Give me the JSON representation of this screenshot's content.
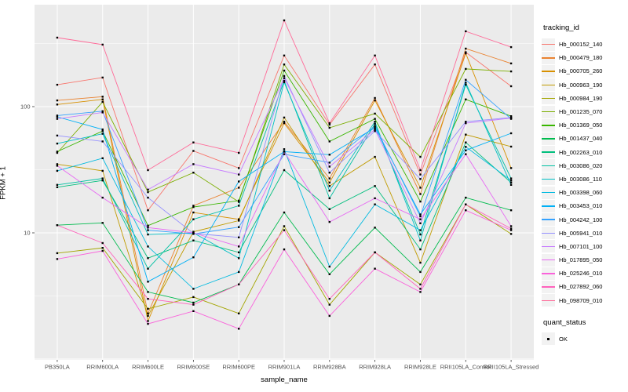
{
  "figure": {
    "background": "#ffffff",
    "panel_background": "#EBEBEB",
    "gridline_color": "#FFFFFF",
    "axis_text_color": "#4D4D4D",
    "tick_mark_color": "#333333"
  },
  "axes": {
    "y_title": "FPKM + 1",
    "x_title": "sample_name"
  },
  "legend": {
    "title": "tracking_id"
  },
  "legend2": {
    "title": "quant_status",
    "items": [
      {
        "label": "OK",
        "symbol": "filled-square-icon"
      }
    ]
  },
  "chart_data": {
    "type": "line",
    "title": "",
    "xlabel": "sample_name",
    "ylabel": "FPKM + 1",
    "y_scale": "log10",
    "y_ticks": [
      100,
      10
    ],
    "y_minor_breaks": [
      316.2,
      31.62,
      3.162
    ],
    "ylim": [
      1,
      650
    ],
    "grid": true,
    "legend_position": "right",
    "point_shape": "filled-square",
    "point_color": "#000000",
    "x_categories": [
      "PB350LA",
      "RRIM600LA",
      "RRIM600LE",
      "RRIM600SE",
      "RRIM600PE",
      "RRIM901LA",
      "RRIM928BA",
      "RRIM928LA",
      "RRIM928LE",
      "RRII105LA_Control",
      "RRII105LA_Stressed"
    ],
    "series": [
      {
        "name": "Hb_000152_140",
        "color": "#F8766D",
        "values": [
          149,
          170,
          15.1,
          44.6,
          32.6,
          254,
          72,
          216,
          29,
          270,
          145
        ]
      },
      {
        "name": "Hb_000479_180",
        "color": "#EA8331",
        "values": [
          112,
          120,
          2.3,
          16.4,
          22.8,
          76,
          27,
          117,
          20.3,
          288,
          220
        ]
      },
      {
        "name": "Hb_000705_260",
        "color": "#D89000",
        "values": [
          104,
          114,
          2.0,
          14.5,
          12.8,
          74,
          25,
          112,
          22.8,
          264,
          32.6
        ]
      },
      {
        "name": "Hb_000963_190",
        "color": "#C09B00",
        "values": [
          35,
          31,
          2.2,
          10.2,
          12.5,
          82,
          23.5,
          40,
          5.8,
          60,
          48.2
        ]
      },
      {
        "name": "Hb_000984_190",
        "color": "#A3A500",
        "values": [
          6.9,
          7.6,
          2.5,
          3.1,
          2.3,
          11.3,
          2.7,
          7.0,
          3.9,
          16.8,
          9.8
        ]
      },
      {
        "name": "Hb_001235_070",
        "color": "#7CAE00",
        "values": [
          43,
          109,
          21,
          30,
          17.6,
          216,
          68,
          88,
          40,
          199,
          190
        ]
      },
      {
        "name": "Hb_001369_050",
        "color": "#39B600",
        "values": [
          44,
          64,
          11.4,
          16.0,
          18.0,
          193,
          53,
          80,
          17.7,
          114,
          84
        ]
      },
      {
        "name": "Hb_001437_040",
        "color": "#00BB4E",
        "values": [
          11.5,
          12,
          3.4,
          2.8,
          3.9,
          14.5,
          4.7,
          11.0,
          4.9,
          19,
          15.1
        ]
      },
      {
        "name": "Hb_002263_010",
        "color": "#00BF7D",
        "values": [
          23,
          26,
          6.3,
          8.7,
          7.0,
          31.4,
          15.4,
          23.5,
          7.4,
          52,
          25
        ]
      },
      {
        "name": "Hb_003086_020",
        "color": "#00C1A3",
        "values": [
          24,
          27,
          5.2,
          12.8,
          16.4,
          160,
          18.8,
          73,
          9.7,
          149,
          27
        ]
      },
      {
        "name": "Hb_003086_110",
        "color": "#00BFC4",
        "values": [
          51,
          61,
          9.7,
          10.0,
          6.3,
          156,
          21.6,
          76,
          8.7,
          155,
          24
        ]
      },
      {
        "name": "Hb_003398_060",
        "color": "#00BAE0",
        "values": [
          31,
          39,
          7.8,
          3.6,
          4.9,
          46,
          5.4,
          16.8,
          10.5,
          48,
          26
        ]
      },
      {
        "name": "Hb_003453_010",
        "color": "#00B0F6",
        "values": [
          83,
          66,
          4.1,
          6.4,
          25.5,
          44,
          41.6,
          68,
          14,
          45,
          61.5
        ]
      },
      {
        "name": "Hb_004242_100",
        "color": "#35A2FF",
        "values": [
          85,
          92,
          10.5,
          9.8,
          11.1,
          42,
          36,
          70,
          13.5,
          163,
          80
        ]
      },
      {
        "name": "Hb_005941_010",
        "color": "#9590FF",
        "values": [
          59,
          53,
          19,
          9.9,
          9.2,
          175,
          30,
          64,
          26.7,
          76,
          82
        ]
      },
      {
        "name": "Hb_007101_100",
        "color": "#C77CFF",
        "values": [
          80,
          90,
          22,
          35,
          29,
          168,
          33.5,
          66,
          11.9,
          74,
          81
        ]
      },
      {
        "name": "Hb_017895_050",
        "color": "#E76BF3",
        "values": [
          34,
          19,
          11,
          10.0,
          7.8,
          44,
          12.2,
          18.8,
          12.8,
          42,
          11.3
        ]
      },
      {
        "name": "Hb_025246_010",
        "color": "#FA62DB",
        "values": [
          6.2,
          7.2,
          1.9,
          2.4,
          1.74,
          7.4,
          2.2,
          5.2,
          3.4,
          15.1,
          10.5
        ]
      },
      {
        "name": "Hb_027892_060",
        "color": "#FF62BC",
        "values": [
          11.5,
          8.3,
          3.0,
          2.7,
          3.9,
          10.5,
          3.0,
          7.0,
          3.6,
          16.8,
          10.8
        ]
      },
      {
        "name": "Hb_098709_010",
        "color": "#FF6A98",
        "values": [
          352,
          310,
          31.4,
          52,
          43,
          482,
          74,
          254,
          31.4,
          395,
          296
        ]
      }
    ]
  }
}
